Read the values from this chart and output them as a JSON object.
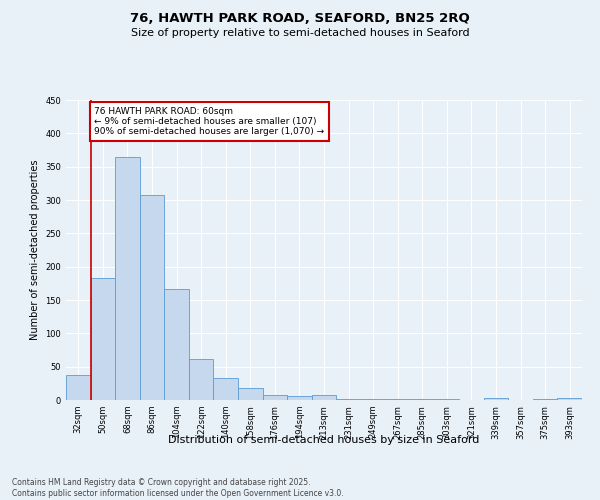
{
  "title": "76, HAWTH PARK ROAD, SEAFORD, BN25 2RQ",
  "subtitle": "Size of property relative to semi-detached houses in Seaford",
  "xlabel": "Distribution of semi-detached houses by size in Seaford",
  "ylabel": "Number of semi-detached properties",
  "categories": [
    "32sqm",
    "50sqm",
    "68sqm",
    "86sqm",
    "104sqm",
    "122sqm",
    "140sqm",
    "158sqm",
    "176sqm",
    "194sqm",
    "213sqm",
    "231sqm",
    "249sqm",
    "267sqm",
    "285sqm",
    "303sqm",
    "321sqm",
    "339sqm",
    "357sqm",
    "375sqm",
    "393sqm"
  ],
  "values": [
    37,
    183,
    365,
    307,
    167,
    61,
    33,
    18,
    8,
    6,
    8,
    1,
    1,
    1,
    1,
    1,
    0,
    3,
    0,
    1,
    3
  ],
  "bar_color": "#c5d8ed",
  "bar_edge_color": "#5b9bd5",
  "highlight_bar_index": 1,
  "highlight_color": "#cc0000",
  "annotation_title": "76 HAWTH PARK ROAD: 60sqm",
  "annotation_line1": "← 9% of semi-detached houses are smaller (107)",
  "annotation_line2": "90% of semi-detached houses are larger (1,070) →",
  "annotation_box_color": "#cc0000",
  "ylim": [
    0,
    450
  ],
  "yticks": [
    0,
    50,
    100,
    150,
    200,
    250,
    300,
    350,
    400,
    450
  ],
  "footer_line1": "Contains HM Land Registry data © Crown copyright and database right 2025.",
  "footer_line2": "Contains public sector information licensed under the Open Government Licence v3.0.",
  "bg_color": "#e8f0f8",
  "plot_bg_color": "#e8f0f8",
  "title_fontsize": 9.5,
  "subtitle_fontsize": 8,
  "xlabel_fontsize": 8,
  "ylabel_fontsize": 7,
  "tick_fontsize": 6,
  "annotation_fontsize": 6.5,
  "footer_fontsize": 5.5
}
